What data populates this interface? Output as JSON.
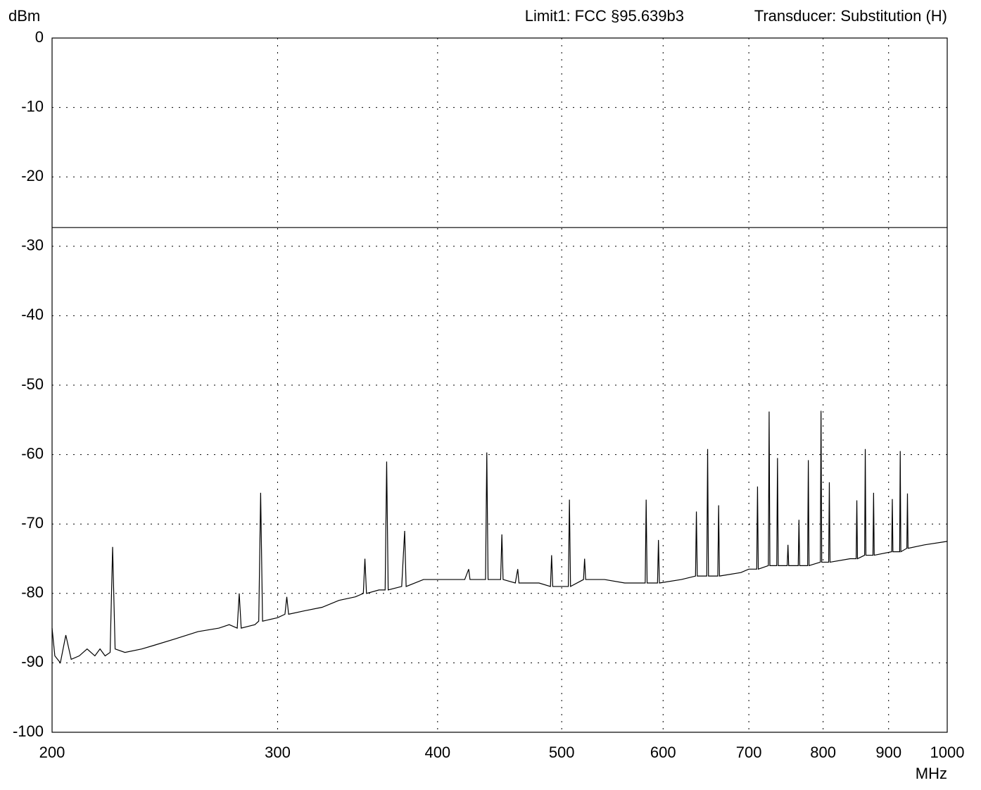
{
  "chart_data": {
    "type": "line",
    "y_unit": "dBm",
    "x_unit": "MHz",
    "header_left": "Limit1: FCC §95.639b3",
    "header_right": "Transducer: Substitution (H)",
    "xscale": "log",
    "grid": true,
    "xlim": [
      200,
      1000
    ],
    "xticks": [
      200,
      300,
      400,
      500,
      600,
      700,
      800,
      900,
      1000
    ],
    "ylim": [
      -100,
      0
    ],
    "yticks": [
      0,
      -10,
      -20,
      -30,
      -40,
      -50,
      -60,
      -70,
      -80,
      -90,
      -100
    ],
    "limit_line": -27.3,
    "x": [
      200,
      201,
      203,
      205,
      207,
      210,
      213,
      216,
      218,
      220,
      222,
      223,
      224,
      228,
      235,
      240,
      250,
      260,
      270,
      275,
      279,
      280,
      281,
      288,
      290,
      291,
      292,
      300,
      304,
      305,
      306,
      315,
      325,
      335,
      345,
      350,
      351,
      352,
      360,
      364,
      365,
      366,
      375,
      377,
      378,
      390,
      400,
      420,
      423,
      424,
      436,
      437,
      438,
      448,
      449,
      450,
      460,
      462,
      463,
      480,
      490,
      491,
      492,
      500,
      506,
      507,
      508,
      520,
      521,
      522,
      540,
      560,
      581,
      582,
      583,
      594,
      595,
      596,
      620,
      636,
      637,
      638,
      649,
      650,
      651,
      662,
      663,
      664,
      690,
      700,
      710,
      711,
      712,
      725,
      726,
      727,
      736,
      737,
      738,
      750,
      751,
      752,
      765,
      766,
      767,
      778,
      779,
      780,
      796,
      797,
      798,
      808,
      809,
      810,
      840,
      849,
      850,
      851,
      862,
      863,
      864,
      875,
      876,
      877,
      905,
      906,
      907,
      918,
      919,
      920,
      930,
      931,
      932,
      960,
      1000
    ],
    "series": [
      {
        "color": "#000000",
        "values": [
          -85,
          -89,
          -90,
          -86,
          -89.5,
          -89,
          -88,
          -89,
          -88,
          -89,
          -88.5,
          -73.3,
          -88,
          -88.5,
          -88,
          -87.5,
          -86.5,
          -85.5,
          -85,
          -84.5,
          -85,
          -80,
          -85,
          -84.5,
          -84,
          -65.5,
          -84,
          -83.5,
          -83,
          -80.5,
          -83,
          -82.5,
          -82,
          -81,
          -80.5,
          -80,
          -75,
          -80,
          -79.5,
          -79.5,
          -61,
          -79.5,
          -79,
          -71,
          -79,
          -78,
          -78,
          -78,
          -76.5,
          -78,
          -78,
          -59.7,
          -78,
          -78,
          -71.5,
          -78,
          -78.5,
          -76.5,
          -78.5,
          -78.5,
          -79,
          -74.5,
          -79,
          -79,
          -79,
          -66.5,
          -79,
          -78,
          -75,
          -78,
          -78,
          -78.5,
          -78.5,
          -66.5,
          -78.5,
          -78.5,
          -72.3,
          -78.5,
          -78,
          -77.5,
          -68.2,
          -77.5,
          -77.5,
          -59.2,
          -77.5,
          -77.5,
          -67.3,
          -77.5,
          -77,
          -76.5,
          -76.5,
          -64.6,
          -76.5,
          -76,
          -53.8,
          -76,
          -76,
          -60.5,
          -76,
          -76,
          -73,
          -76,
          -76,
          -69.4,
          -76,
          -76,
          -60.8,
          -76,
          -75.5,
          -53.7,
          -75.5,
          -75.5,
          -64,
          -75.5,
          -75,
          -75,
          -66.6,
          -75,
          -74.5,
          -59.2,
          -74.5,
          -74.5,
          -65.5,
          -74.5,
          -74,
          -66.4,
          -74,
          -74,
          -59.5,
          -74,
          -73.5,
          -65.6,
          -73.5,
          -73,
          -72.5
        ]
      }
    ]
  }
}
